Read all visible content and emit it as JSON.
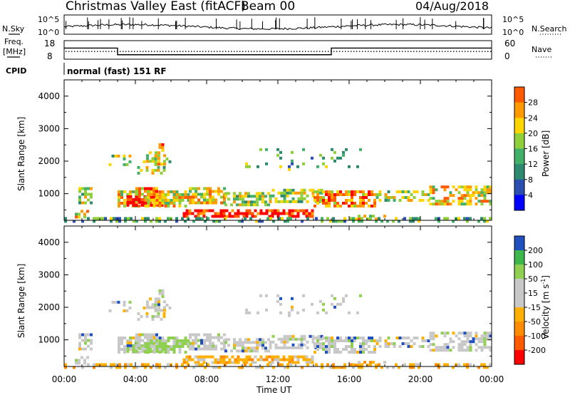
{
  "header": {
    "title": "Christmas Valley East (fitACF)",
    "beam": "Beam 00",
    "date": "04/Aug/2018"
  },
  "side_labels": {
    "nsky": "N.Sky",
    "freq": "Freq.",
    "freq_unit": "[MHz]",
    "cpid": "CPID",
    "nsearch": "N.Search",
    "nave": "Nave"
  },
  "cpid_text": "normal (fast) 151 RF",
  "colors": {
    "frame": "#000000",
    "low_scatter": "#2030c0",
    "power_scale": [
      "#0000ff",
      "#2a4fb0",
      "#2e8a6e",
      "#43b06a",
      "#8fcf3a",
      "#ffd500",
      "#ff9a00",
      "#ff5a00",
      "#ff0000"
    ],
    "velocity_scale": [
      "#ff0000",
      "#ff5a00",
      "#ff8c00",
      "#ffb000",
      "#c8c8c8",
      "#c8c8c8",
      "#8fd050",
      "#3cb94a",
      "#2e8a6e",
      "#2050c0",
      "#1a1aa0"
    ]
  },
  "chart_data": [
    {
      "type": "line",
      "name": "noise",
      "y_ticks_left": [
        "10^5",
        "10^0"
      ],
      "y_ticks_right": [
        "10^5",
        "10^0"
      ]
    },
    {
      "type": "line",
      "name": "frequency-nave",
      "y_ticks_left": [
        18,
        8
      ],
      "y_ticks_right": [
        60,
        0
      ],
      "freq_segments": [
        {
          "x": [
            0,
            3.0
          ],
          "y": 14.0
        },
        {
          "x": [
            3.0,
            15.0
          ],
          "y": 10.4
        },
        {
          "x": [
            15.0,
            24.0
          ],
          "y": 14.0
        }
      ]
    },
    {
      "type": "heatmap",
      "name": "power",
      "ylabel": "Slant Range [km]",
      "yticks": [
        1000,
        2000,
        3000,
        4000
      ],
      "ylim": [
        180,
        4500
      ],
      "xlim": [
        0,
        24
      ],
      "colorbar_label": "Power [dB]",
      "colorbar_ticks": [
        4,
        8,
        12,
        16,
        20,
        24,
        28
      ],
      "colorbar_range": [
        0,
        32
      ]
    },
    {
      "type": "heatmap",
      "name": "velocity",
      "ylabel": "Slant Range [km]",
      "xlabel": "Time UT",
      "yticks": [
        1000,
        2000,
        3000,
        4000
      ],
      "ylim": [
        180,
        4500
      ],
      "xlim": [
        0,
        24
      ],
      "x_tick_labels": [
        "00:00",
        "04:00",
        "08:00",
        "12:00",
        "16:00",
        "20:00",
        "00:00"
      ],
      "colorbar_label": "Velocity [m s^-1]",
      "colorbar_ticks": [
        200,
        100,
        50,
        15,
        -15,
        -50,
        -100,
        -200
      ]
    }
  ]
}
